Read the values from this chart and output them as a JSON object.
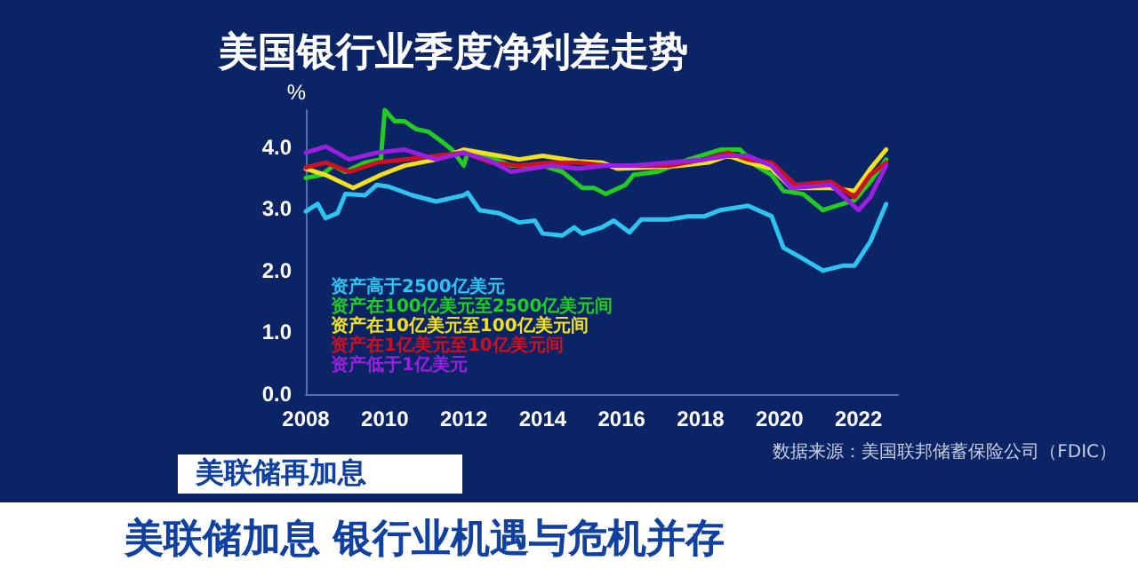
{
  "chart_data": {
    "type": "line",
    "title": "美国银行业季度净利差走势",
    "ylabel": "%",
    "annotations": [
      "数据来源：美国联邦储蓄保险公司（FDIC）",
      "美联储再加息",
      "美联储加息 银行业机遇与危机并存"
    ],
    "xlim": [
      2008,
      2023
    ],
    "xticks": [
      2008,
      2010,
      2012,
      2014,
      2016,
      2018,
      2020,
      2022
    ],
    "ylim": [
      0,
      4.6
    ],
    "yticks": [
      {
        "value": 0,
        "label": "0.0"
      },
      {
        "value": 1,
        "label": "1.0"
      },
      {
        "value": 2,
        "label": "2.0"
      },
      {
        "value": 3,
        "label": "3.0"
      },
      {
        "value": 4,
        "label": "4.0"
      }
    ],
    "legend": "bottom left",
    "marker": "none",
    "line_style": "solid",
    "series": [
      {
        "name": "资产高于2500亿美元",
        "color": "#2ec4f0",
        "x": [
          2008.0,
          2008.3,
          2008.5,
          2008.8,
          2009.0,
          2009.5,
          2009.8,
          2010.1,
          2010.7,
          2011.3,
          2012.0,
          2012.1,
          2012.4,
          2012.9,
          2013.4,
          2013.8,
          2014.0,
          2014.5,
          2014.8,
          2015.0,
          2015.5,
          2015.8,
          2016.2,
          2016.5,
          2017.2,
          2017.7,
          2018.1,
          2018.5,
          2019.0,
          2019.2,
          2019.8,
          2020.1,
          2020.6,
          2021.1,
          2021.6,
          2021.9,
          2022.3,
          2022.7
        ],
        "values": [
          2.96,
          3.08,
          2.85,
          2.93,
          3.24,
          3.22,
          3.39,
          3.36,
          3.22,
          3.12,
          3.22,
          3.26,
          2.98,
          2.93,
          2.78,
          2.81,
          2.6,
          2.57,
          2.7,
          2.6,
          2.7,
          2.81,
          2.62,
          2.83,
          2.83,
          2.88,
          2.88,
          2.98,
          3.03,
          3.05,
          2.88,
          2.37,
          2.19,
          2.0,
          2.08,
          2.08,
          2.47,
          3.08
        ]
      },
      {
        "name": "资产在100亿美元至2500亿美元间",
        "color": "#22cc22",
        "x": [
          2008.0,
          2008.4,
          2008.7,
          2009.0,
          2009.5,
          2009.9,
          2010.0,
          2010.25,
          2010.5,
          2010.8,
          2011.1,
          2011.4,
          2011.7,
          2012.0,
          2012.1,
          2012.6,
          2013.2,
          2014.0,
          2014.5,
          2015.0,
          2015.3,
          2015.6,
          2016.1,
          2016.3,
          2016.9,
          2017.7,
          2018.5,
          2019.0,
          2019.4,
          2019.8,
          2020.1,
          2020.6,
          2021.1,
          2021.6,
          2021.9,
          2022.3,
          2022.7
        ],
        "values": [
          3.5,
          3.55,
          3.7,
          3.6,
          3.75,
          3.8,
          4.6,
          4.42,
          4.42,
          4.29,
          4.25,
          4.11,
          3.96,
          3.7,
          3.91,
          3.86,
          3.7,
          3.7,
          3.6,
          3.34,
          3.34,
          3.24,
          3.39,
          3.55,
          3.6,
          3.8,
          3.96,
          3.96,
          3.7,
          3.55,
          3.29,
          3.24,
          2.98,
          3.08,
          3.14,
          3.44,
          3.8
        ]
      },
      {
        "name": "资产在10亿美元至100亿美元间",
        "color": "#f0e020",
        "x": [
          2008.0,
          2008.5,
          2009.2,
          2009.9,
          2010.5,
          2011.3,
          2012.0,
          2012.9,
          2013.4,
          2014.0,
          2014.9,
          2015.5,
          2015.9,
          2016.6,
          2017.5,
          2018.2,
          2018.7,
          2019.2,
          2019.8,
          2020.3,
          2020.7,
          2021.3,
          2021.9,
          2022.3,
          2022.7
        ],
        "values": [
          3.65,
          3.55,
          3.34,
          3.55,
          3.7,
          3.8,
          3.96,
          3.86,
          3.8,
          3.86,
          3.77,
          3.75,
          3.65,
          3.67,
          3.7,
          3.75,
          3.86,
          3.75,
          3.65,
          3.34,
          3.34,
          3.34,
          3.29,
          3.65,
          3.96
        ]
      },
      {
        "name": "资产在1亿美元至10亿美元间",
        "color": "#d01020",
        "x": [
          2008.0,
          2008.5,
          2009.1,
          2009.8,
          2010.5,
          2011.3,
          2012.0,
          2012.7,
          2013.4,
          2014.2,
          2014.9,
          2015.6,
          2016.3,
          2017.2,
          2018.1,
          2018.7,
          2019.2,
          2019.8,
          2020.4,
          2021.3,
          2021.9,
          2022.3,
          2022.7
        ],
        "values": [
          3.67,
          3.75,
          3.6,
          3.75,
          3.8,
          3.86,
          3.91,
          3.75,
          3.7,
          3.75,
          3.75,
          3.7,
          3.7,
          3.7,
          3.8,
          3.91,
          3.8,
          3.75,
          3.39,
          3.44,
          3.19,
          3.55,
          3.75
        ]
      },
      {
        "name": "资产低于1亿美元",
        "color": "#9a20e0",
        "x": [
          2008.0,
          2008.5,
          2009.1,
          2009.8,
          2010.5,
          2011.3,
          2012.0,
          2012.7,
          2013.2,
          2014.2,
          2014.9,
          2015.6,
          2016.3,
          2017.2,
          2018.1,
          2018.7,
          2019.2,
          2019.8,
          2020.3,
          2021.3,
          2022.0,
          2022.3,
          2022.7
        ],
        "values": [
          3.91,
          4.01,
          3.8,
          3.91,
          3.96,
          3.8,
          3.91,
          3.77,
          3.6,
          3.7,
          3.65,
          3.7,
          3.7,
          3.75,
          3.8,
          3.86,
          3.86,
          3.7,
          3.34,
          3.39,
          2.98,
          3.19,
          3.7
        ]
      }
    ]
  }
}
